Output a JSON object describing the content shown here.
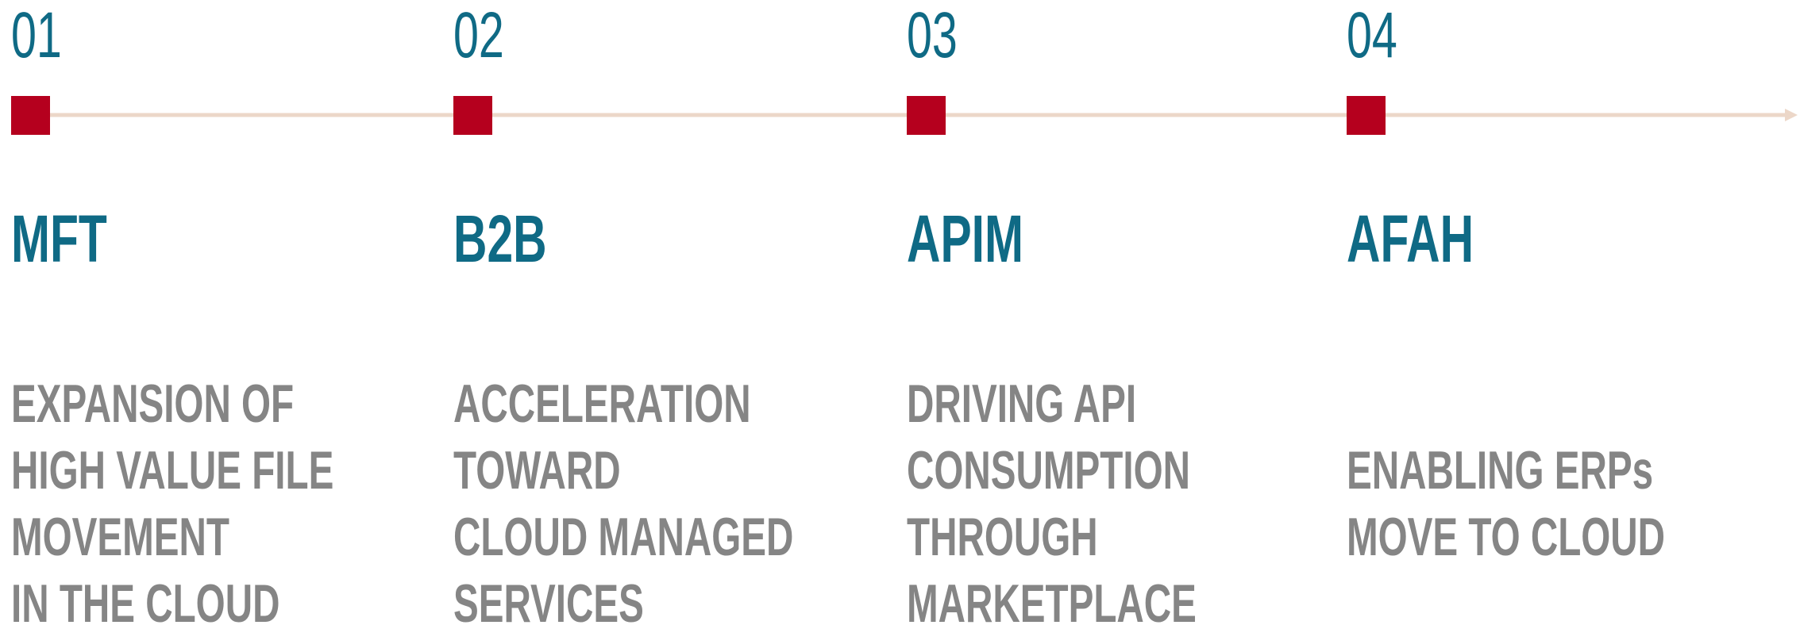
{
  "timeline": {
    "items": [
      {
        "number": "01",
        "title": "MFT",
        "lines": [
          "EXPANSION OF",
          "HIGH VALUE FILE",
          "MOVEMENT",
          "IN THE CLOUD"
        ]
      },
      {
        "number": "02",
        "title": "B2B",
        "lines": [
          "ACCELERATION",
          "TOWARD",
          "CLOUD MANAGED",
          "SERVICES"
        ]
      },
      {
        "number": "03",
        "title": "APIM",
        "lines": [
          "DRIVING API",
          "CONSUMPTION",
          "THROUGH",
          "MARKETPLACE"
        ]
      },
      {
        "number": "04",
        "title": "AFAH",
        "lines": [
          "ENABLING  ERPs",
          "MOVE TO CLOUD"
        ]
      }
    ]
  }
}
